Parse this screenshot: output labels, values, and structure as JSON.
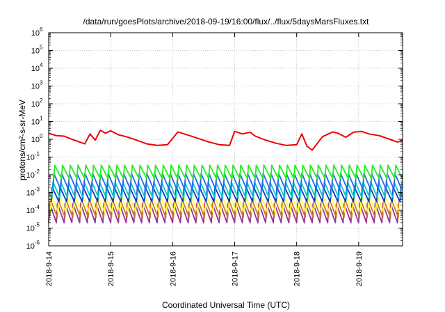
{
  "chart_data": {
    "type": "line",
    "title": "/data/run/goesPlots/archive/2018-09-19/16:00/flux/../flux/5daysMarsFluxes.txt",
    "xlabel": "Coordinated Universal Time (UTC)",
    "ylabel": "protons/cm²-s-sr-MeV",
    "y_scale": "log",
    "ylim": [
      1e-06,
      1000000.0
    ],
    "xlim": [
      "2018-09-14 00:00",
      "2018-09-19 17:00"
    ],
    "x_ticks": [
      "2018-9-14",
      "2018-9-15",
      "2018-9-16",
      "2018-9-17",
      "2018-9-18",
      "2018-9-19"
    ],
    "y_ticks": [
      {
        "base": "10",
        "exp": "-6"
      },
      {
        "base": "10",
        "exp": "-5"
      },
      {
        "base": "10",
        "exp": "-4"
      },
      {
        "base": "10",
        "exp": "-3"
      },
      {
        "base": "10",
        "exp": "-2"
      },
      {
        "base": "10",
        "exp": "-1"
      },
      {
        "base": "10",
        "exp": "0"
      },
      {
        "base": "10",
        "exp": "1"
      },
      {
        "base": "10",
        "exp": "2"
      },
      {
        "base": "10",
        "exp": "3"
      },
      {
        "base": "10",
        "exp": "4"
      },
      {
        "base": "10",
        "exp": "5"
      },
      {
        "base": "10",
        "exp": "6"
      }
    ],
    "grid": true,
    "series": [
      {
        "color": "#ee0000",
        "x": [
          "2018-09-14 00:00",
          "2018-09-14 03:00",
          "2018-09-14 06:00",
          "2018-09-14 09:00",
          "2018-09-14 12:00",
          "2018-09-14 14:00",
          "2018-09-14 16:00",
          "2018-09-14 18:00",
          "2018-09-14 20:00",
          "2018-09-14 22:00",
          "2018-09-15 00:00",
          "2018-09-15 03:00",
          "2018-09-15 06:00",
          "2018-09-15 10:00",
          "2018-09-15 14:00",
          "2018-09-15 18:00",
          "2018-09-15 22:00",
          "2018-09-16 02:00",
          "2018-09-16 06:00",
          "2018-09-16 10:00",
          "2018-09-16 14:00",
          "2018-09-16 18:00",
          "2018-09-16 22:00",
          "2018-09-17 00:00",
          "2018-09-17 03:00",
          "2018-09-17 06:00",
          "2018-09-17 08:00",
          "2018-09-17 12:00",
          "2018-09-17 16:00",
          "2018-09-17 20:00",
          "2018-09-18 00:00",
          "2018-09-18 02:00",
          "2018-09-18 04:00",
          "2018-09-18 06:00",
          "2018-09-18 10:00",
          "2018-09-18 14:00",
          "2018-09-18 16:00",
          "2018-09-18 19:00",
          "2018-09-18 22:00",
          "2018-09-19 01:00",
          "2018-09-19 04:00",
          "2018-09-19 08:00",
          "2018-09-19 12:00",
          "2018-09-19 15:00",
          "2018-09-19 17:00"
        ],
        "y": [
          2.2,
          1.6,
          1.5,
          1.0,
          0.7,
          0.55,
          2.0,
          0.9,
          3.2,
          2.2,
          3.0,
          1.8,
          1.4,
          0.9,
          0.55,
          0.45,
          0.5,
          2.6,
          1.7,
          1.1,
          0.7,
          0.5,
          0.45,
          2.8,
          2.0,
          2.5,
          1.5,
          0.9,
          0.6,
          0.45,
          0.5,
          2.0,
          0.4,
          0.25,
          1.4,
          2.6,
          2.2,
          1.3,
          2.5,
          2.8,
          2.0,
          1.6,
          1.0,
          0.7,
          0.85
        ]
      },
      {
        "color": "#22ee22",
        "x": [
          "2018-09-14 00:00",
          "2018-09-19 17:00"
        ],
        "y": [
          0.035,
          0.006
        ],
        "cycles_per_day": 8,
        "peak": 0.035,
        "trough": 0.006
      },
      {
        "color": "#2266ee",
        "x": [
          "2018-09-14 00:00",
          "2018-09-19 17:00"
        ],
        "y": [
          0.012,
          0.0015
        ],
        "cycles_per_day": 8,
        "peak": 0.012,
        "trough": 0.0015
      },
      {
        "color": "#00cccc",
        "x": [
          "2018-09-14 00:00",
          "2018-09-19 17:00"
        ],
        "y": [
          0.004,
          0.0005
        ],
        "cycles_per_day": 8,
        "peak": 0.004,
        "trough": 0.0005
      },
      {
        "color": "#1133cc",
        "x": [
          "2018-09-14 00:00",
          "2018-09-19 17:00"
        ],
        "y": [
          0.002,
          0.0003
        ],
        "cycles_per_day": 8,
        "peak": 0.002,
        "trough": 0.0003
      },
      {
        "color": "#ffff44",
        "x": [
          "2018-09-14 00:00",
          "2018-09-19 17:00"
        ],
        "y": [
          0.0007,
          8e-05
        ],
        "cycles_per_day": 8,
        "peak": 0.0007,
        "trough": 8e-05
      },
      {
        "color": "#cc7722",
        "x": [
          "2018-09-14 00:00",
          "2018-09-19 17:00"
        ],
        "y": [
          0.0004,
          4e-05
        ],
        "cycles_per_day": 8,
        "peak": 0.0004,
        "trough": 4e-05
      },
      {
        "color": "#993399",
        "x": [
          "2018-09-14 00:00",
          "2018-09-19 17:00"
        ],
        "y": [
          0.00025,
          2e-05
        ],
        "cycles_per_day": 8,
        "peak": 0.00025,
        "trough": 2e-05
      }
    ]
  }
}
